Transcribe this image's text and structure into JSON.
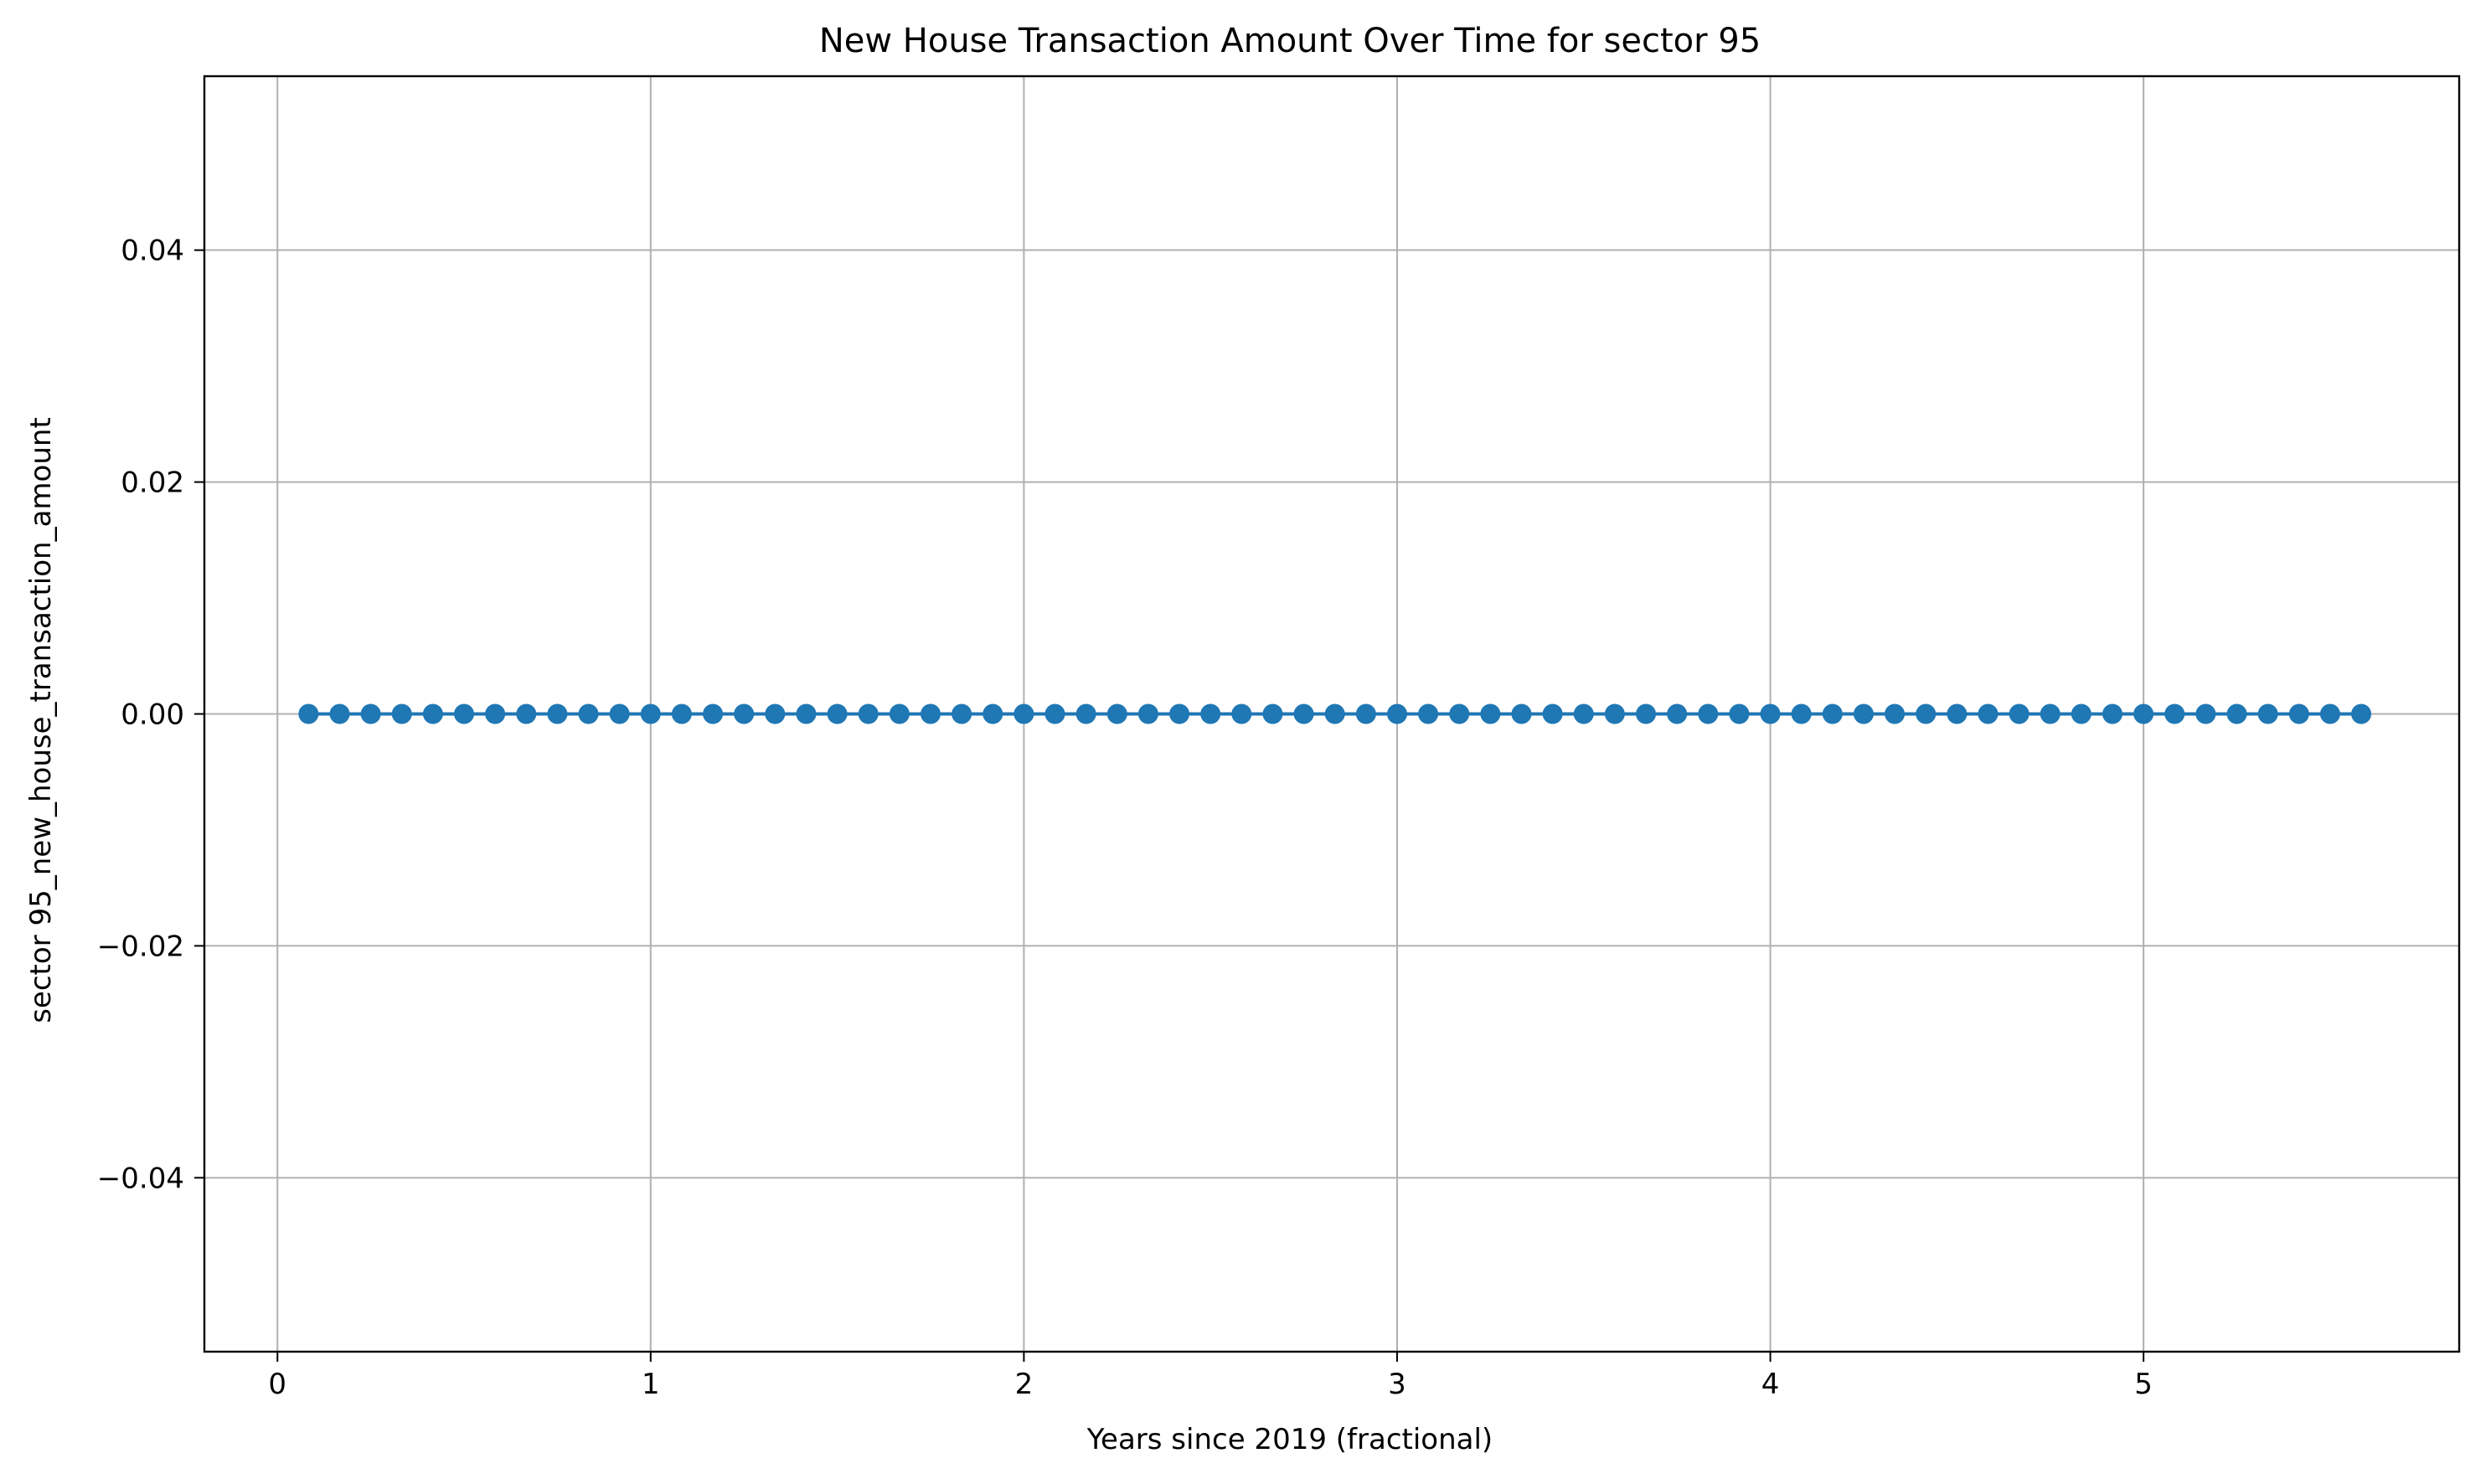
{
  "chart_data": {
    "type": "line",
    "title": "New House Transaction Amount Over Time for sector 95",
    "xlabel": "Years since 2019 (fractional)",
    "ylabel": "sector 95_new_house_transaction_amount",
    "xlim": [
      -0.1958,
      5.8458
    ],
    "ylim": [
      -0.055,
      0.055
    ],
    "xticks": [
      0,
      1,
      2,
      3,
      4,
      5
    ],
    "xtick_labels": [
      "0",
      "1",
      "2",
      "3",
      "4",
      "5"
    ],
    "yticks": [
      0.04,
      0.02,
      0.0,
      -0.02,
      -0.04
    ],
    "ytick_labels": [
      "0.04",
      "0.02",
      "0.00",
      "−0.02",
      "−0.04"
    ],
    "grid": true,
    "marker": "circle",
    "color": "#1f77b4",
    "series": [
      {
        "x": [
          0.0833,
          0.1667,
          0.25,
          0.3333,
          0.4167,
          0.5,
          0.5833,
          0.6667,
          0.75,
          0.8333,
          0.9167,
          1.0,
          1.0833,
          1.1667,
          1.25,
          1.3333,
          1.4167,
          1.5,
          1.5833,
          1.6667,
          1.75,
          1.8333,
          1.9167,
          2.0,
          2.0833,
          2.1667,
          2.25,
          2.3333,
          2.4167,
          2.5,
          2.5833,
          2.6667,
          2.75,
          2.8333,
          2.9167,
          3.0,
          3.0833,
          3.1667,
          3.25,
          3.3333,
          3.4167,
          3.5,
          3.5833,
          3.6667,
          3.75,
          3.8333,
          3.9167,
          4.0,
          4.0833,
          4.1667,
          4.25,
          4.3333,
          4.4167,
          4.5,
          4.5833,
          4.6667,
          4.75,
          4.8333,
          4.9167,
          5.0,
          5.0833,
          5.1667,
          5.25,
          5.3333,
          5.4167,
          5.5,
          5.5833
        ],
        "values": [
          0,
          0,
          0,
          0,
          0,
          0,
          0,
          0,
          0,
          0,
          0,
          0,
          0,
          0,
          0,
          0,
          0,
          0,
          0,
          0,
          0,
          0,
          0,
          0,
          0,
          0,
          0,
          0,
          0,
          0,
          0,
          0,
          0,
          0,
          0,
          0,
          0,
          0,
          0,
          0,
          0,
          0,
          0,
          0,
          0,
          0,
          0,
          0,
          0,
          0,
          0,
          0,
          0,
          0,
          0,
          0,
          0,
          0,
          0,
          0,
          0,
          0,
          0,
          0,
          0,
          0,
          0
        ]
      }
    ]
  }
}
